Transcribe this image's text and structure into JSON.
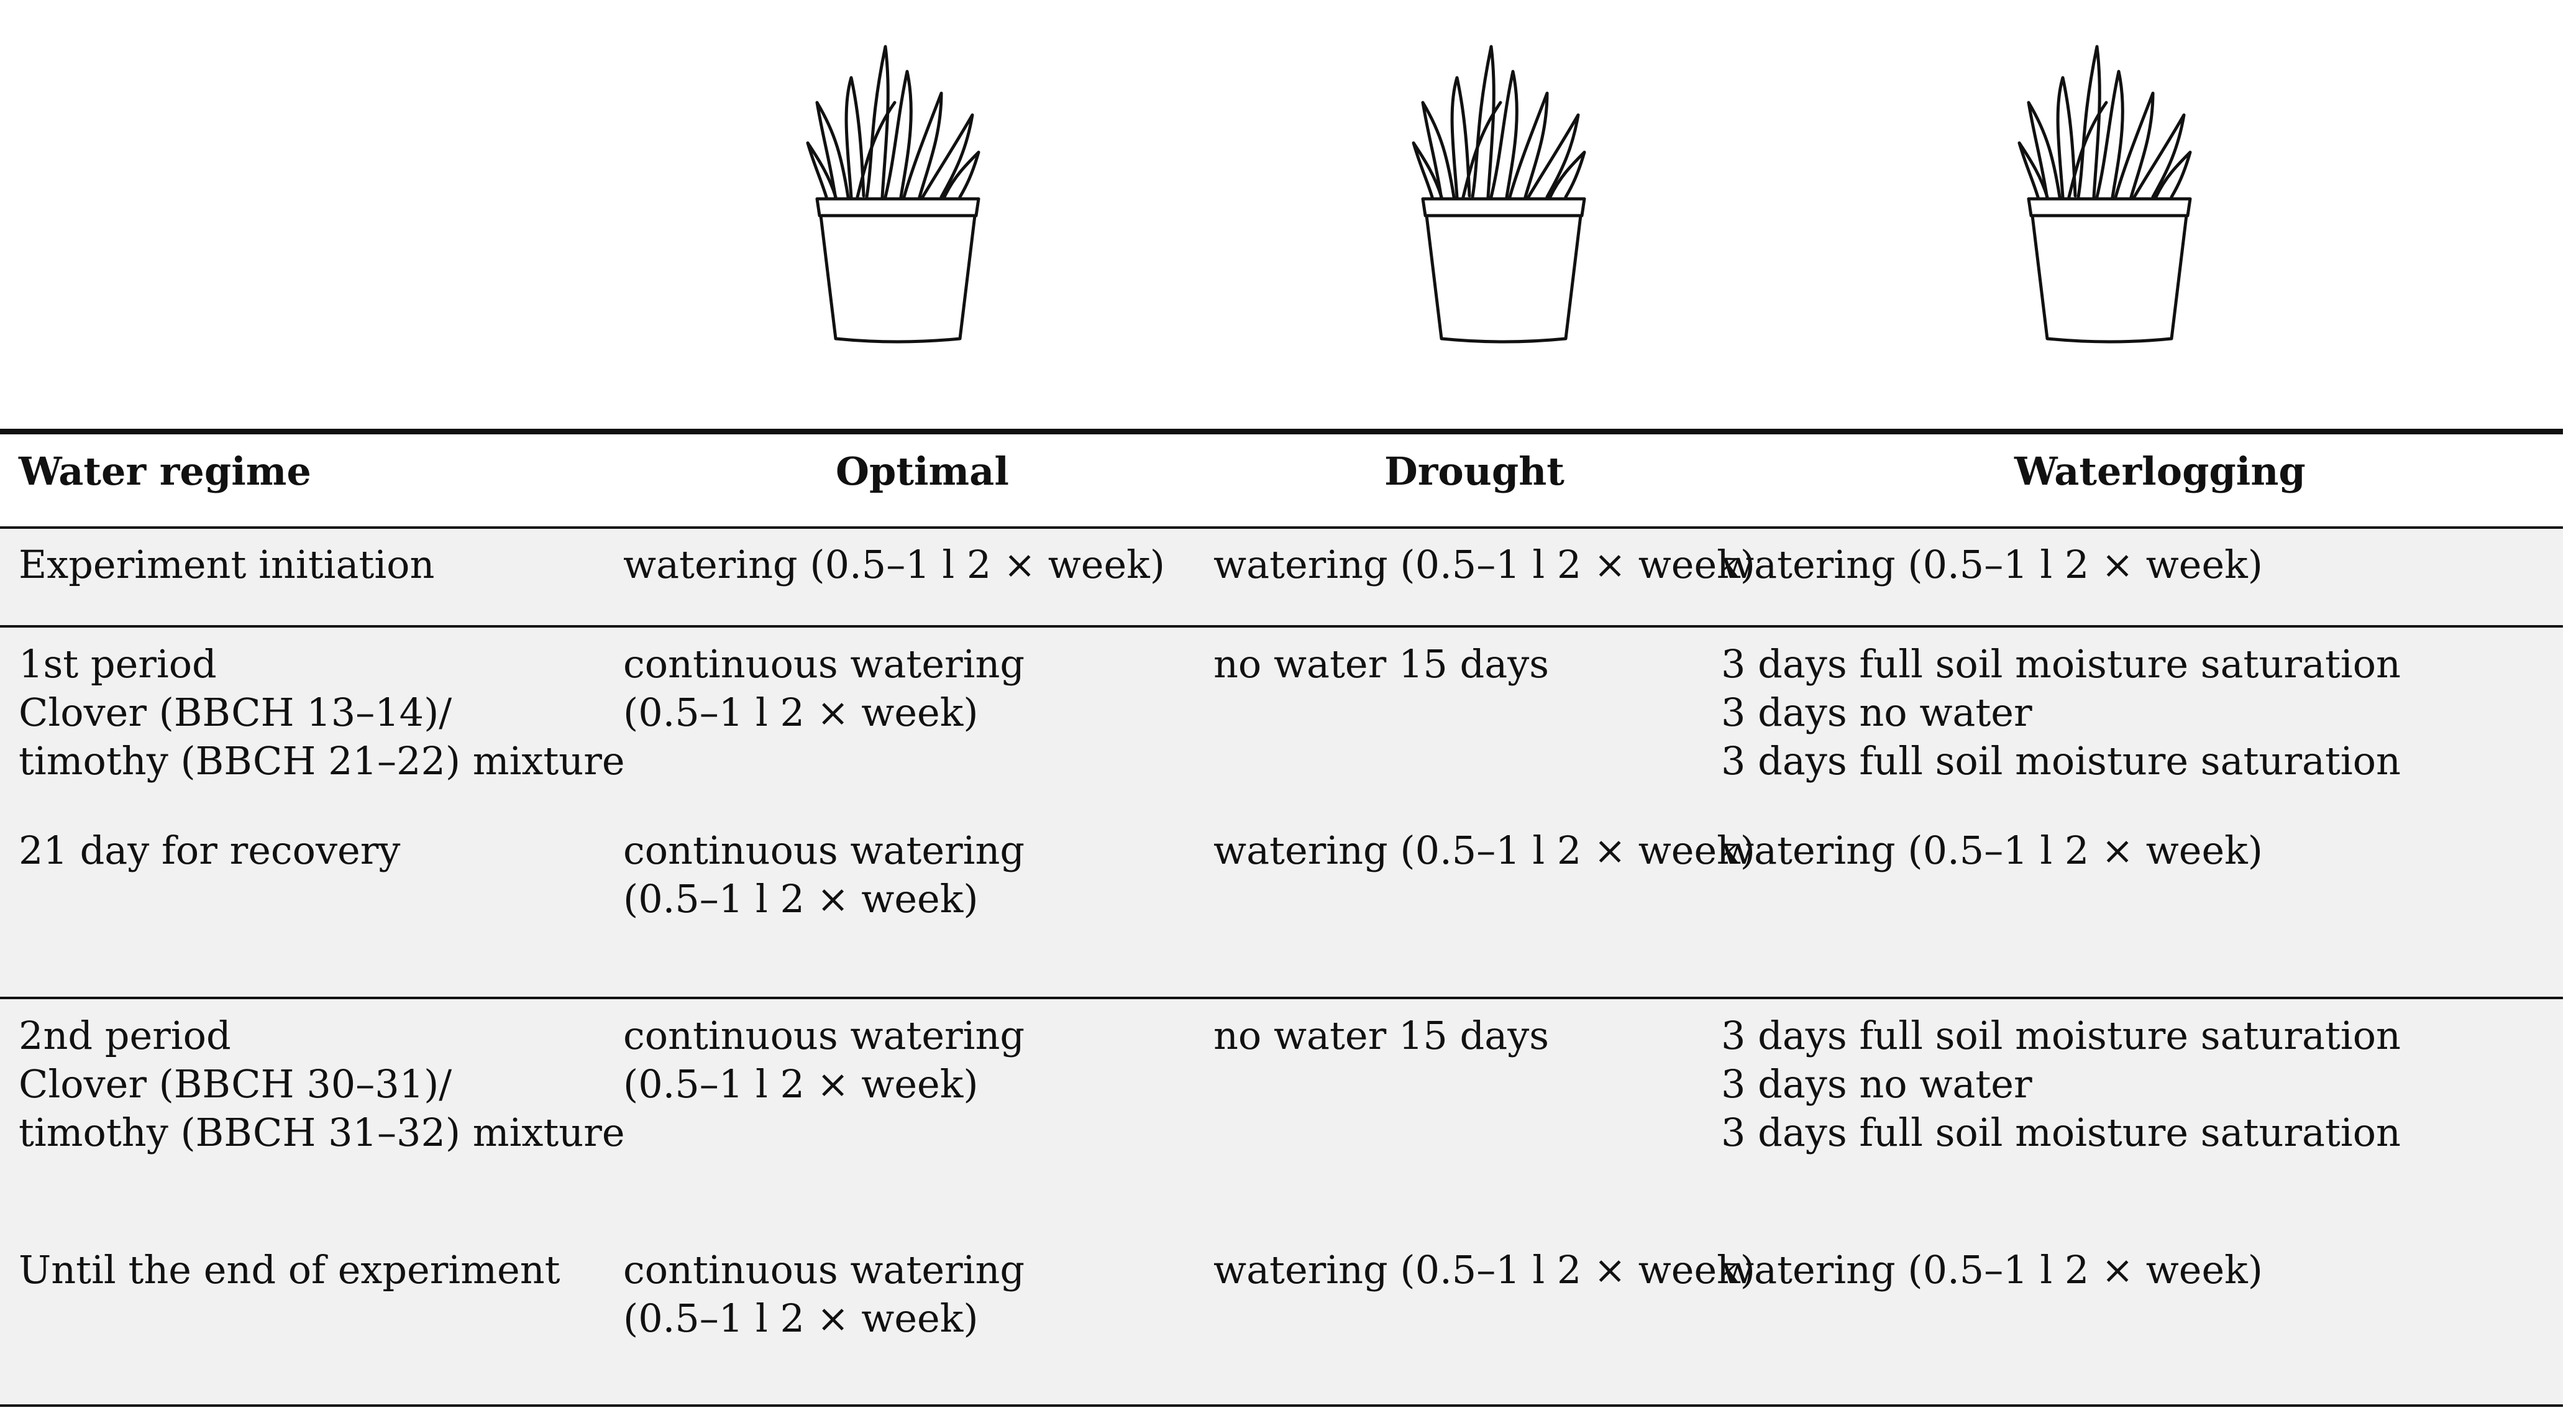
{
  "icons": {
    "plant_optimal": "potted-grass-icon",
    "plant_drought": "potted-grass-icon",
    "plant_waterlogging": "potted-grass-icon"
  },
  "header": {
    "col1": "Water regime",
    "col2": "Optimal",
    "col3": "Drought",
    "col4": "Waterlogging"
  },
  "rows": [
    {
      "regime": [
        "Experiment initiation"
      ],
      "optimal": [
        "watering (0.5–1 l 2 × week)"
      ],
      "drought": [
        "watering (0.5–1 l 2 × week)"
      ],
      "waterlogging": [
        "watering (0.5–1 l 2 × week)"
      ]
    },
    {
      "regime": [
        "1st period",
        "Clover (BBCH 13–14)/",
        "timothy (BBCH 21–22) mixture"
      ],
      "optimal": [
        "continuous watering",
        "(0.5–1 l 2 × week)"
      ],
      "drought": [
        "no water 15 days"
      ],
      "waterlogging": [
        "3 days full soil moisture saturation",
        "3 days no water",
        "3 days full soil moisture saturation"
      ]
    },
    {
      "regime": [
        "21 day for recovery"
      ],
      "optimal": [
        "continuous watering",
        "(0.5–1 l 2 × week)"
      ],
      "drought": [
        "watering (0.5–1 l 2 × week)"
      ],
      "waterlogging": [
        "watering (0.5–1 l 2 × week)"
      ]
    },
    {
      "regime": [
        "2nd period",
        "Clover (BBCH 30–31)/",
        "timothy (BBCH 31–32) mixture"
      ],
      "optimal": [
        "continuous watering",
        "(0.5–1 l 2 × week)"
      ],
      "drought": [
        "no water 15 days"
      ],
      "waterlogging": [
        "3 days full soil moisture saturation",
        "3 days no water",
        "3 days full soil moisture saturation"
      ]
    },
    {
      "regime": [
        "Until the end of experiment"
      ],
      "optimal": [
        "continuous watering",
        "(0.5–1 l 2 × week)"
      ],
      "drought": [
        "watering (0.5–1 l 2 × week)"
      ],
      "waterlogging": [
        "watering (0.5–1 l 2 × week)"
      ]
    }
  ]
}
